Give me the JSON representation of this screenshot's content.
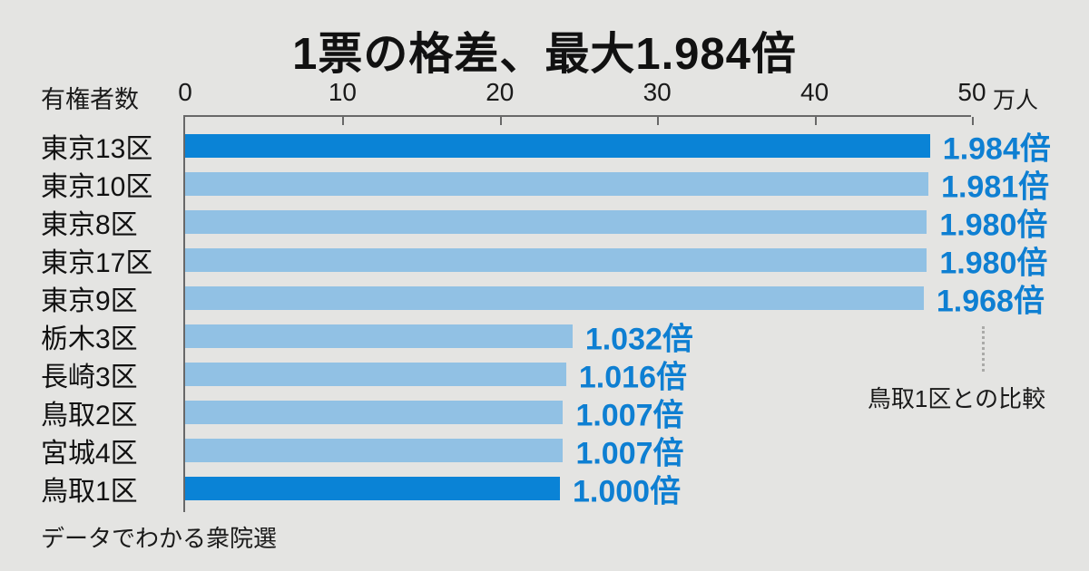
{
  "title": "1票の格差、最大1.984倍",
  "axis": {
    "label": "有権者数",
    "ticks": [
      "0",
      "10",
      "20",
      "30",
      "40",
      "50"
    ],
    "unit": "万人",
    "max": 50
  },
  "chart_data": {
    "type": "bar",
    "orientation": "horizontal",
    "title": "1票の格差、最大1.984倍",
    "xlabel": "有権者数（万人）",
    "xlim": [
      0,
      50
    ],
    "grid": false,
    "categories": [
      "東京13区",
      "東京10区",
      "東京8区",
      "東京17区",
      "東京9区",
      "栃木3区",
      "長崎3区",
      "鳥取2区",
      "宮城4区",
      "鳥取1区"
    ],
    "values": [
      47.5,
      47.4,
      47.3,
      47.3,
      47.1,
      24.7,
      24.3,
      24.1,
      24.1,
      23.9
    ],
    "ratio_labels": [
      "1.984倍",
      "1.981倍",
      "1.980倍",
      "1.980倍",
      "1.968倍",
      "1.032倍",
      "1.016倍",
      "1.007倍",
      "1.007倍",
      "1.000倍"
    ],
    "highlighted_indices": [
      0,
      9
    ]
  },
  "annotation": "鳥取1区との比較",
  "footer": "データでわかる衆院選",
  "colors": {
    "background": "#e4e4e2",
    "bar": "#91c1e4",
    "bar_highlight": "#0a83d6",
    "ratio_text": "#0e7fd2",
    "axis_line": "#686868",
    "text": "#171717"
  }
}
